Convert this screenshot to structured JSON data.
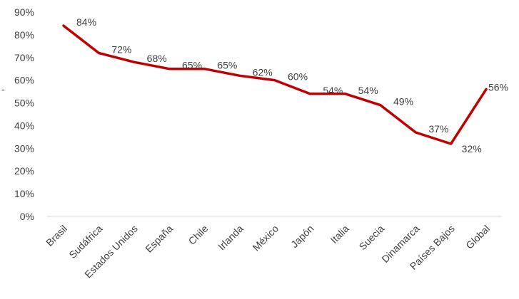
{
  "chart_data": {
    "type": "line",
    "title": "",
    "xlabel": "",
    "ylabel": "",
    "ylim": [
      0,
      90
    ],
    "y_ticks": [
      "0%",
      "10%",
      "20%",
      "30%",
      "40%",
      "50%",
      "60%",
      "70%",
      "80%",
      "90%"
    ],
    "y_axis_mark": "-",
    "grid": false,
    "legend": "none",
    "categories": [
      "Brasil",
      "Sudáfrica",
      "Estados Unidos",
      "España",
      "Chile",
      "Irlanda",
      "México",
      "Japón",
      "Italia",
      "Suecia",
      "Dinamarca",
      "Países Bajos",
      "Global"
    ],
    "series": [
      {
        "values": [
          84,
          72,
          68,
          65,
          65,
          62,
          60,
          54,
          54,
          49,
          37,
          32,
          56
        ],
        "labels": [
          "84%",
          "72%",
          "68%",
          "65%",
          "65%",
          "62%",
          "60%",
          "54%",
          "54%",
          "49%",
          "37%",
          "32%",
          "56%"
        ],
        "color": "#c00000"
      }
    ]
  }
}
